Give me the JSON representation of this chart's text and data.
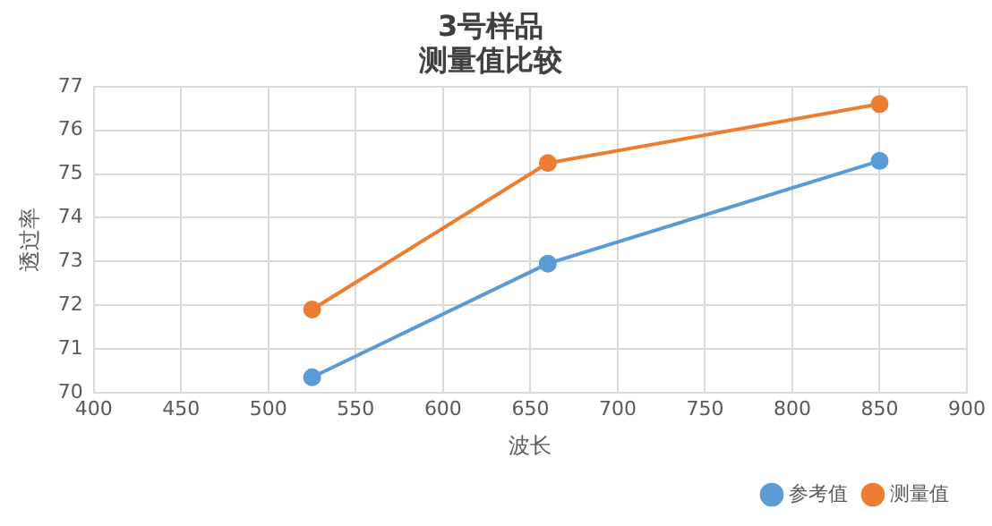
{
  "chart_data": {
    "type": "line",
    "title": "3号样品",
    "subtitle": "测量值比较",
    "xlabel": "波长",
    "ylabel": "透过率",
    "x": [
      525,
      660,
      850
    ],
    "series": [
      {
        "name": "参考值",
        "color": "#5b9bd5",
        "values": [
          70.35,
          72.95,
          75.3
        ]
      },
      {
        "name": "测量值",
        "color": "#ed7d31",
        "values": [
          71.9,
          75.25,
          76.6
        ]
      }
    ],
    "xlim": [
      400,
      900
    ],
    "xticks": [
      400,
      450,
      500,
      550,
      600,
      650,
      700,
      750,
      800,
      850,
      900
    ],
    "ylim": [
      70,
      77
    ],
    "yticks": [
      70,
      71,
      72,
      73,
      74,
      75,
      76,
      77
    ],
    "grid": true,
    "legend": "bottom right",
    "marker": "circle",
    "line_style": "solid"
  }
}
